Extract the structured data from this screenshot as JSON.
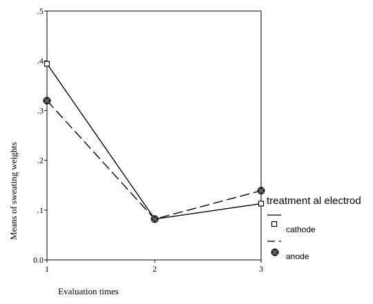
{
  "chart_data": {
    "type": "line",
    "title": "",
    "xlabel": "Evaluation times",
    "ylabel": "Means of sweating weights",
    "x": [
      1,
      2,
      3
    ],
    "x_tick_labels": [
      "1",
      "2",
      "3"
    ],
    "y_tick_labels": [
      "0.0",
      ".1",
      ".2",
      ".3",
      ".4",
      ".5"
    ],
    "ylim": [
      0,
      0.5
    ],
    "grid": false,
    "legend": {
      "title": "treatment al electrod",
      "placement": "right",
      "entries": [
        "cathode",
        "anode"
      ]
    },
    "series": [
      {
        "name": "cathode",
        "values": [
          0.394,
          0.082,
          0.113
        ],
        "line_style": "solid",
        "marker": "open-square",
        "color": "#000000"
      },
      {
        "name": "anode",
        "values": [
          0.32,
          0.082,
          0.139
        ],
        "line_style": "dashed",
        "marker": "filled-circle",
        "color": "#000000"
      }
    ]
  }
}
